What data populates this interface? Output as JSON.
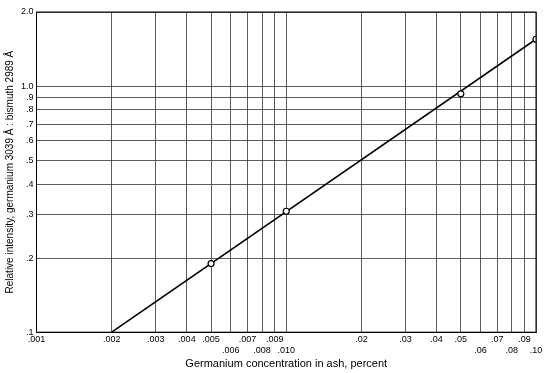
{
  "chart_data": {
    "type": "line",
    "x_label": "Germanium concentration in ash, percent",
    "y_label": "Relative intensity, germanium 3039 Å : bismuth 2989 Å",
    "log": true,
    "grid": true,
    "xlim": [
      0.001,
      0.1
    ],
    "ylim": [
      0.1,
      2.0
    ],
    "xticks": [
      {
        "value": 0.001,
        "label": ".001"
      },
      {
        "value": 0.002,
        "label": ".002"
      },
      {
        "value": 0.003,
        "label": ".003"
      },
      {
        "value": 0.004,
        "label": ".004"
      },
      {
        "value": 0.005,
        "label": ".005"
      },
      {
        "value": 0.006,
        "label": ".006"
      },
      {
        "value": 0.007,
        "label": ".007"
      },
      {
        "value": 0.008,
        "label": ".008"
      },
      {
        "value": 0.009,
        "label": ".009"
      },
      {
        "value": 0.01,
        "label": ".010"
      },
      {
        "value": 0.02,
        "label": ".02"
      },
      {
        "value": 0.03,
        "label": ".03"
      },
      {
        "value": 0.04,
        "label": ".04"
      },
      {
        "value": 0.05,
        "label": ".05"
      },
      {
        "value": 0.06,
        "label": ".06"
      },
      {
        "value": 0.07,
        "label": ".07"
      },
      {
        "value": 0.08,
        "label": ".08"
      },
      {
        "value": 0.09,
        "label": ".09"
      },
      {
        "value": 0.1,
        "label": ".10"
      }
    ],
    "yticks": [
      {
        "value": 0.1,
        "label": ".1"
      },
      {
        "value": 0.2,
        "label": ".2"
      },
      {
        "value": 0.3,
        "label": ".3"
      },
      {
        "value": 0.4,
        "label": ".4"
      },
      {
        "value": 0.5,
        "label": ".5"
      },
      {
        "value": 0.6,
        "label": ".6"
      },
      {
        "value": 0.7,
        "label": ".7"
      },
      {
        "value": 0.8,
        "label": ".8"
      },
      {
        "value": 0.9,
        "label": ".9"
      },
      {
        "value": 1.0,
        "label": "1.0"
      },
      {
        "value": 2.0,
        "label": "2.0"
      }
    ],
    "series": [
      {
        "type": "line",
        "color": "#000000",
        "marker": "none",
        "line_style": "solid",
        "x": [
          0.002,
          0.1
        ],
        "values": [
          0.1,
          1.55
        ]
      },
      {
        "type": "scatter",
        "color": "#000000",
        "marker": "circle",
        "x": [
          0.005,
          0.01,
          0.05,
          0.1
        ],
        "values": [
          0.19,
          0.31,
          0.93,
          1.55
        ]
      }
    ]
  }
}
